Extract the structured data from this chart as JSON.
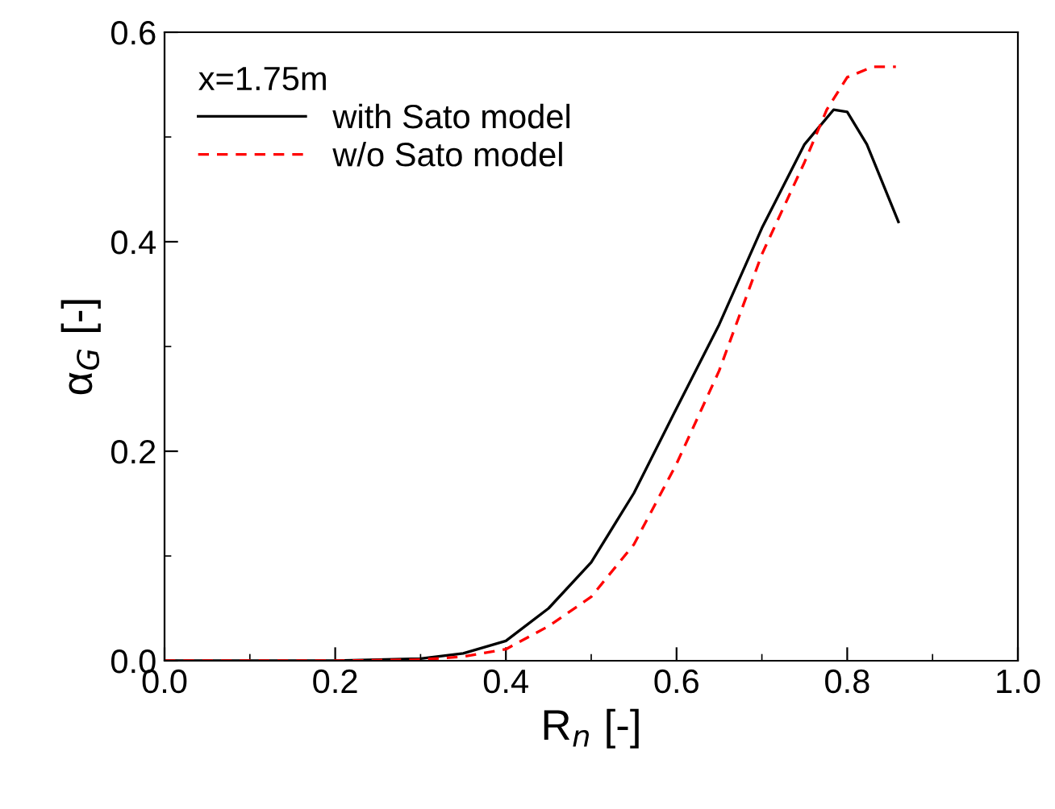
{
  "chart_data": {
    "type": "line",
    "xlabel": "R$_{n}$ [-]",
    "ylabel": "α$_{G}$ [-]",
    "legend_title": "x=1.75m",
    "legend": "top left",
    "xlim": [
      0.0,
      1.0
    ],
    "ylim": [
      0.0,
      0.6
    ],
    "xticks": [
      {
        "value": 0,
        "label": "0.0"
      },
      0.2,
      0.4,
      0.6,
      0.8,
      {
        "value": 1,
        "label": "1.0"
      }
    ],
    "yticks": [
      {
        "value": 0,
        "label": "0.0"
      },
      0.2,
      0.4,
      0.6
    ],
    "series": [
      {
        "name": "with Sato model",
        "color": "#000000",
        "line_style": "solid",
        "x": [
          0.0,
          0.2,
          0.3,
          0.35,
          0.4,
          0.45,
          0.5,
          0.55,
          0.6,
          0.65,
          0.7,
          0.75,
          0.784,
          0.8,
          0.823,
          0.86
        ],
        "values": [
          0.0,
          0.0,
          0.002,
          0.007,
          0.019,
          0.05,
          0.094,
          0.16,
          0.241,
          0.321,
          0.413,
          0.493,
          0.526,
          0.524,
          0.493,
          0.419
        ]
      },
      {
        "name": "w/o Sato model",
        "color": "#ff0000",
        "line_style": "dashed",
        "x": [
          0.0,
          0.2,
          0.3,
          0.35,
          0.4,
          0.45,
          0.5,
          0.55,
          0.6,
          0.65,
          0.7,
          0.75,
          0.776,
          0.8,
          0.83,
          0.857
        ],
        "values": [
          0.0,
          0.0,
          0.001,
          0.004,
          0.011,
          0.033,
          0.061,
          0.111,
          0.188,
          0.277,
          0.388,
          0.476,
          0.526,
          0.557,
          0.567,
          0.567
        ]
      }
    ]
  }
}
